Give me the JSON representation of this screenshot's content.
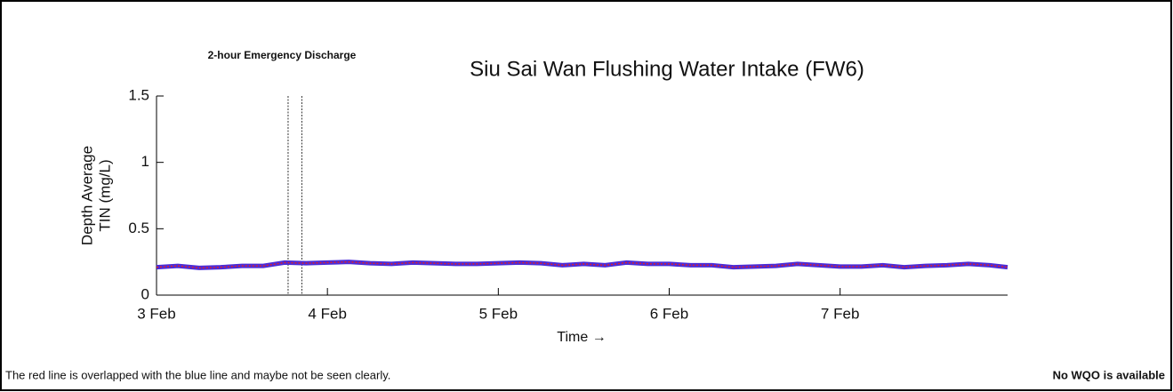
{
  "chart_data": {
    "type": "line",
    "title": "Siu Sai Wan Flushing Water Intake (FW6)",
    "annotation": "2-hour Emergency Discharge",
    "discharge_x": [
      3.77,
      3.85
    ],
    "ylabel": [
      "Depth Average",
      "TIN (mg/L)"
    ],
    "xlabel": "Time →",
    "footnote": "The red line is overlapped with the blue line and maybe not be seen clearly.",
    "wqo_note": "No WQO is available",
    "x": [
      3.0,
      3.125,
      3.25,
      3.375,
      3.5,
      3.625,
      3.75,
      3.875,
      4.0,
      4.125,
      4.25,
      4.375,
      4.5,
      4.625,
      4.75,
      4.875,
      5.0,
      5.125,
      5.25,
      5.375,
      5.5,
      5.625,
      5.75,
      5.875,
      6.0,
      6.125,
      6.25,
      6.375,
      6.5,
      6.625,
      6.75,
      6.875,
      7.0,
      7.125,
      7.25,
      7.375,
      7.5,
      7.625,
      7.75,
      7.875,
      7.98
    ],
    "series": [
      {
        "color": "#4b2bd8",
        "values": [
          0.21,
          0.22,
          0.205,
          0.21,
          0.22,
          0.22,
          0.245,
          0.24,
          0.245,
          0.25,
          0.24,
          0.235,
          0.245,
          0.24,
          0.235,
          0.235,
          0.24,
          0.245,
          0.24,
          0.225,
          0.235,
          0.225,
          0.245,
          0.235,
          0.235,
          0.225,
          0.225,
          0.21,
          0.215,
          0.22,
          0.235,
          0.225,
          0.215,
          0.215,
          0.225,
          0.21,
          0.22,
          0.225,
          0.235,
          0.225,
          0.21
        ]
      },
      {
        "color": "#e0202a",
        "values": [
          0.21,
          0.22,
          0.205,
          0.21,
          0.22,
          0.22,
          0.245,
          0.24,
          0.245,
          0.25,
          0.24,
          0.235,
          0.245,
          0.24,
          0.235,
          0.235,
          0.24,
          0.245,
          0.24,
          0.225,
          0.235,
          0.225,
          0.245,
          0.235,
          0.235,
          0.225,
          0.225,
          0.21,
          0.215,
          0.22,
          0.235,
          0.225,
          0.215,
          0.215,
          0.225,
          0.21,
          0.22,
          0.225,
          0.235,
          0.225,
          0.21
        ]
      }
    ],
    "xlim": [
      3,
      7.98
    ],
    "xticks": [
      {
        "value": 3,
        "label": "3 Feb"
      },
      {
        "value": 4,
        "label": "4 Feb"
      },
      {
        "value": 5,
        "label": "5 Feb"
      },
      {
        "value": 6,
        "label": "6 Feb"
      },
      {
        "value": 7,
        "label": "7 Feb"
      }
    ],
    "ylim": [
      0,
      1.5
    ],
    "yticks": [
      0,
      0.5,
      1,
      1.5
    ]
  }
}
